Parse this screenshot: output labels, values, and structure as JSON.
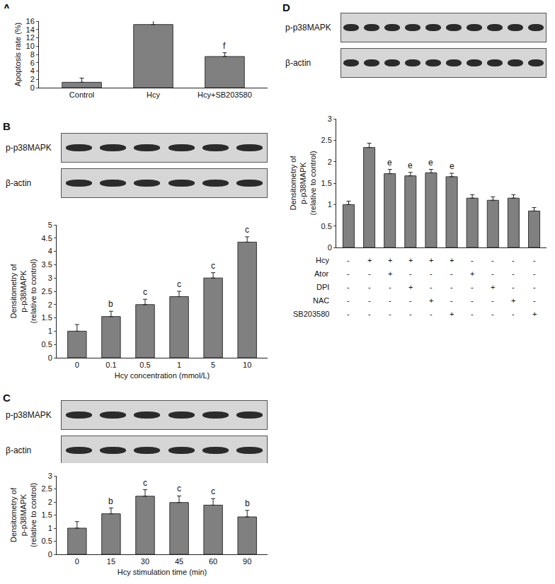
{
  "chart_data": [
    {
      "type": "bar",
      "title": "A",
      "categories": [
        "Control",
        "Hcy",
        "Hcy+SB203580"
      ],
      "values": [
        1.3,
        15.2,
        7.5
      ],
      "errors": [
        1.0,
        0.9,
        0.9
      ],
      "sig_labels": [
        null,
        null,
        "f"
      ],
      "ylabel": "Apoptosis rate (%)",
      "ylim": [
        0,
        16
      ],
      "yticks": [
        0,
        2,
        4,
        6,
        8,
        10,
        12,
        14,
        16
      ],
      "color": "#808080",
      "grid": false
    },
    {
      "type": "bar",
      "title": "B",
      "annotations": [
        "p-p38MAPK",
        "β-actin"
      ],
      "categories": [
        "0",
        "0.1",
        "0.5",
        "1",
        "5",
        "10"
      ],
      "values": [
        1.0,
        1.55,
        2.0,
        2.3,
        3.0,
        4.35
      ],
      "errors": [
        0.25,
        0.2,
        0.2,
        0.2,
        0.2,
        0.2
      ],
      "sig_labels": [
        null,
        "b",
        "c",
        "c",
        "c",
        "c"
      ],
      "xlabel": "Hcy concentration (mmol/L)",
      "ylabel": "Densitometry of\np-p38MAPK\n(relative to control)",
      "ylim": [
        0,
        5
      ],
      "yticks": [
        0,
        0.5,
        1,
        1.5,
        2,
        2.5,
        3,
        3.5,
        4,
        4.5,
        5
      ],
      "color": "#808080",
      "grid": false
    },
    {
      "type": "bar",
      "title": "C",
      "annotations": [
        "p-p38MAPK",
        "β-actin"
      ],
      "categories": [
        "0",
        "15",
        "30",
        "45",
        "60",
        "90"
      ],
      "values": [
        1.0,
        1.55,
        2.22,
        1.98,
        1.88,
        1.43
      ],
      "errors": [
        0.25,
        0.22,
        0.25,
        0.25,
        0.25,
        0.25
      ],
      "sig_labels": [
        null,
        "b",
        "c",
        "c",
        "c",
        "b"
      ],
      "xlabel": "Hcy stimulation time (min)",
      "ylabel": "Densitometry of\np-p38MAPK\n(relative to control)",
      "ylim": [
        0,
        3
      ],
      "yticks": [
        0,
        0.5,
        1,
        1.5,
        2,
        2.5,
        3
      ],
      "color": "#808080",
      "grid": false
    },
    {
      "type": "bar",
      "title": "D",
      "annotations": [
        "p-p38MAPK",
        "β-actin"
      ],
      "categories": [
        null,
        null,
        null,
        null,
        null,
        null,
        null,
        null,
        null,
        null
      ],
      "values": [
        1.0,
        2.33,
        1.72,
        1.67,
        1.74,
        1.65,
        1.15,
        1.1,
        1.15,
        0.85
      ],
      "errors": [
        0.08,
        0.1,
        0.1,
        0.08,
        0.08,
        0.08,
        0.08,
        0.08,
        0.08,
        0.08
      ],
      "sig_labels": [
        null,
        null,
        "e",
        "e",
        "e",
        "e",
        null,
        null,
        null,
        null
      ],
      "treatments": [
        {
          "name": "Hcy",
          "signs": [
            "-",
            "+",
            "+",
            "+",
            "+",
            "+",
            "-",
            "-",
            "-",
            "-"
          ]
        },
        {
          "name": "Ator",
          "signs": [
            "-",
            "-",
            "+",
            "-",
            "-",
            "-",
            "+",
            "-",
            "-",
            "-"
          ]
        },
        {
          "name": "DPI",
          "signs": [
            "-",
            "-",
            "-",
            "+",
            "-",
            "-",
            "-",
            "+",
            "-",
            "-"
          ]
        },
        {
          "name": "NAC",
          "signs": [
            "-",
            "-",
            "-",
            "-",
            "+",
            "-",
            "-",
            "-",
            "+",
            "-"
          ]
        },
        {
          "name": "SB203580",
          "signs": [
            "-",
            "-",
            "-",
            "-",
            "-",
            "+",
            "-",
            "-",
            "-",
            "+"
          ]
        }
      ],
      "ylabel": "Densitometry of\np-p38MAPK\n(relative to control)",
      "ylim": [
        0,
        3
      ],
      "yticks": [
        0,
        0.5,
        1,
        1.5,
        2,
        2.5,
        3
      ],
      "color": "#808080",
      "grid": false
    }
  ]
}
